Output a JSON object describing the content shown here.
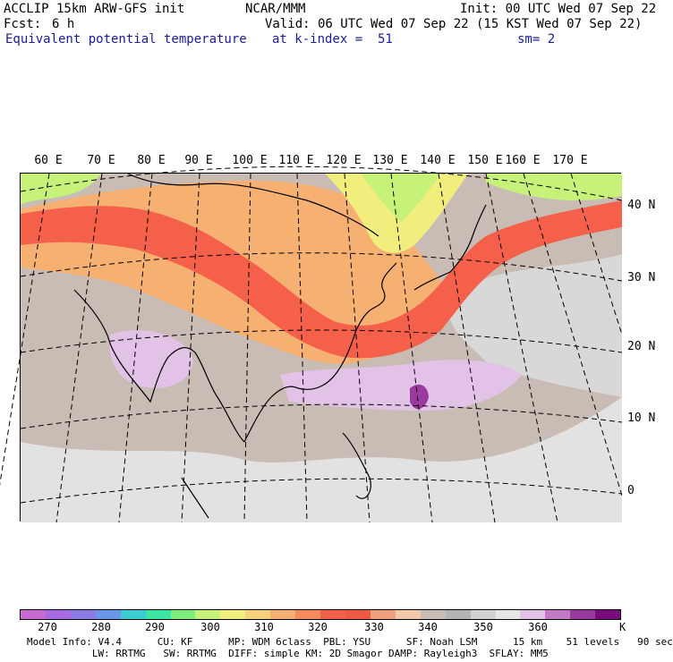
{
  "header": {
    "model": "ACCLIP 15km ARW-GFS init",
    "agency": "NCAR/MMM",
    "init": "Init: 00 UTC Wed 07 Sep 22",
    "fcst_label": "Fcst:",
    "fcst_value": "6 h",
    "valid": "Valid: 06 UTC Wed 07 Sep 22 (15 KST Wed 07 Sep 22)",
    "field": "Equivalent potential temperature",
    "level": "at k-index =  51",
    "smoothing": "sm= 2"
  },
  "map": {
    "longitude_labels": [
      "60 E",
      "70 E",
      "80 E",
      "90 E",
      "100 E",
      "110 E",
      "120 E",
      "130 E",
      "140 E",
      "150 E",
      "160 E",
      "170 E"
    ],
    "latitude_labels": [
      "40 N",
      "30 N",
      "20 N",
      "10 N",
      "0"
    ]
  },
  "colorbar": {
    "tick_labels": [
      "270",
      "280",
      "290",
      "300",
      "310",
      "320",
      "330",
      "340",
      "350",
      "360"
    ],
    "unit": "K",
    "colors": [
      "#c86ad2",
      "#a86ae2",
      "#8c7ae6",
      "#6a96ea",
      "#3ecad2",
      "#3ee6a6",
      "#7eee7a",
      "#c6f27a",
      "#f2ee7e",
      "#f6d27a",
      "#f6b072",
      "#f68a5a",
      "#f4604a",
      "#ee5a46",
      "#f0a07c",
      "#f2c8a8",
      "#c8bcb4",
      "#b4b4b4",
      "#d2d2d2",
      "#e6e6e6",
      "#e2c2e6",
      "#c27ac6",
      "#9a3a9e",
      "#7a0a7e"
    ]
  },
  "footer": {
    "line1": "Model Info: V4.4      CU: KF      MP: WDM 6class  PBL: YSU      SF: Noah LSM      15 km    51 levels   90 sec",
    "line2": "           LW: RRTMG   SW: RRTMG  DIFF: simple KM: 2D Smagor DAMP: Rayleigh3  SFLAY: MM5"
  }
}
